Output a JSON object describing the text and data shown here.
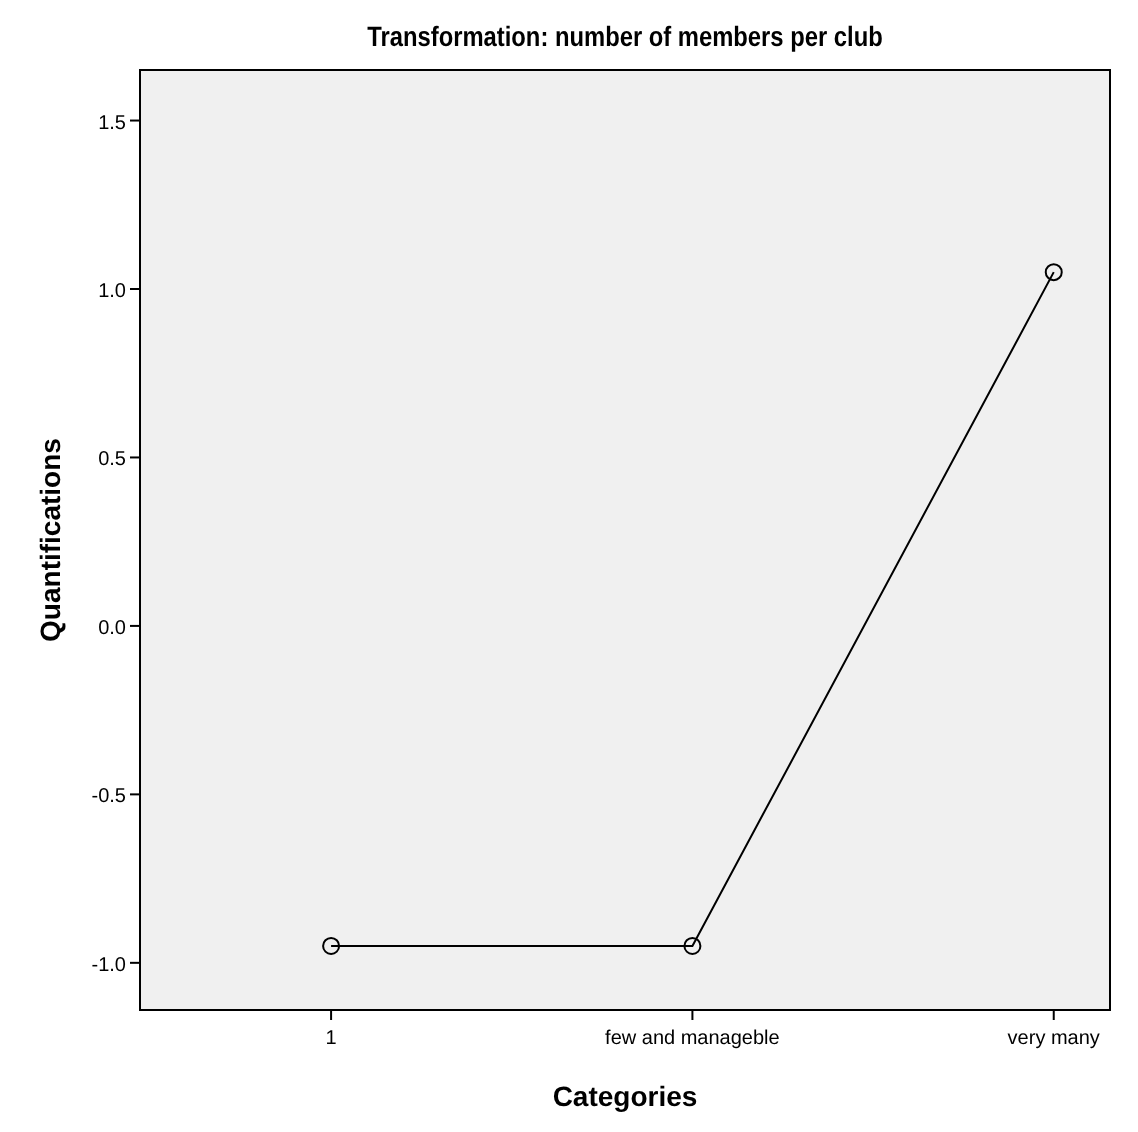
{
  "chart_data": {
    "type": "line",
    "title": "Transformation: number of members per club",
    "xlabel": "Categories",
    "ylabel": "Quantifications",
    "categories": [
      "1",
      "few and manageble",
      "very many"
    ],
    "series": [
      {
        "color": "#000000",
        "values": [
          -0.95,
          -0.95,
          1.05
        ]
      }
    ],
    "ylim": [
      -1.14,
      1.65
    ],
    "yticks": [
      {
        "value": -1,
        "label": "-1.0"
      },
      {
        "value": -0.5,
        "label": "-0.5"
      },
      {
        "value": 0,
        "label": "0.0"
      },
      {
        "value": 0.5,
        "label": "0.5"
      },
      {
        "value": 1,
        "label": "1.0"
      },
      {
        "value": 1.5,
        "label": "1.5"
      }
    ],
    "marker": "circle",
    "grid": false
  }
}
